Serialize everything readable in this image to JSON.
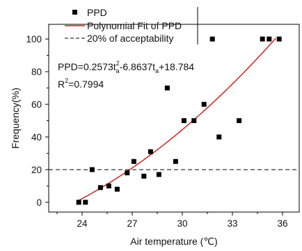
{
  "chart_data": {
    "type": "scatter",
    "xlabel": "Air temperature (℃)",
    "ylabel": "Frequency(%)",
    "xlim": [
      22,
      37
    ],
    "ylim": [
      -6,
      109
    ],
    "xticks": [
      24,
      27,
      30,
      33,
      36
    ],
    "yticks": [
      0,
      20,
      40,
      60,
      80,
      100
    ],
    "grid": false,
    "legend_position": "top-left",
    "series": [
      {
        "name": "PPD",
        "kind": "scatter",
        "marker": "square",
        "color": "#000000",
        "points": [
          [
            23.8,
            0
          ],
          [
            24.2,
            0
          ],
          [
            24.6,
            20
          ],
          [
            25.1,
            9
          ],
          [
            25.6,
            10
          ],
          [
            26.1,
            8
          ],
          [
            26.7,
            18
          ],
          [
            27.1,
            25
          ],
          [
            27.7,
            16
          ],
          [
            28.1,
            31
          ],
          [
            28.6,
            17
          ],
          [
            29.1,
            70
          ],
          [
            29.6,
            25
          ],
          [
            30.1,
            50
          ],
          [
            30.7,
            50
          ],
          [
            31.3,
            60
          ],
          [
            31.8,
            100
          ],
          [
            32.2,
            40
          ],
          [
            33.4,
            50
          ],
          [
            34.8,
            100
          ],
          [
            35.2,
            100
          ],
          [
            35.8,
            100
          ]
        ]
      },
      {
        "name": "Polynomial Fit of PPD",
        "kind": "fit",
        "color": "#d42020",
        "coefficients": {
          "a2": 0.2573,
          "a1": -6.8637,
          "a0": 18.784
        },
        "x_range": [
          23.8,
          35.6
        ]
      },
      {
        "name": "20% of acceptability",
        "kind": "hline",
        "y": 20,
        "color": "#000000",
        "dash": true
      }
    ],
    "annotations": {
      "equation_main": "PPD=0.2573t",
      "equation_sub1": "a",
      "equation_sup": "2",
      "equation_mid": "-6.8637t",
      "equation_sub2": "a",
      "equation_end": "+18.784",
      "r2_main": "R",
      "r2_sup": "2",
      "r2_end": "=0.7994"
    }
  }
}
